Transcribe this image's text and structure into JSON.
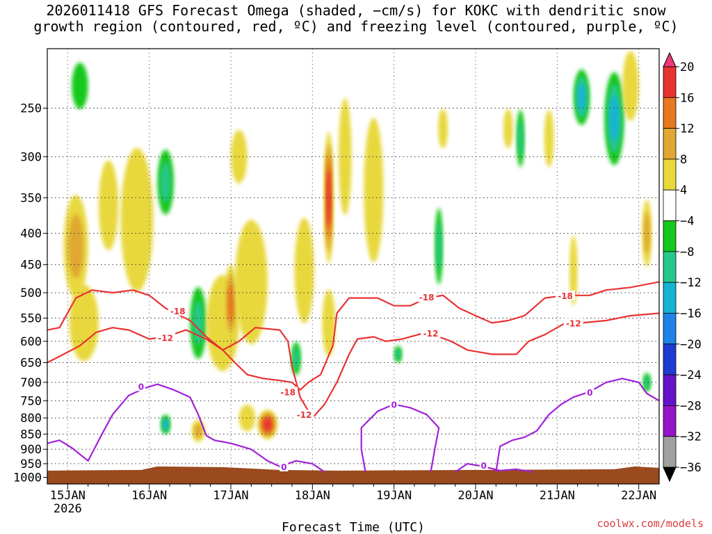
{
  "title": {
    "line1": "2026011418 GFS Forecast Omega (shaded, −cm/s) for KOKC with dendritic snow",
    "line2": "growth region (contoured, red, ºC) and freezing level (contoured, purple, ºC)"
  },
  "credit": "coolwx.com/models",
  "chart_data": {
    "type": "heatmap",
    "title": "2026011418 GFS Forecast Omega (shaded, −cm/s) for KOKC with dendritic snow growth region (contoured, red, ºC) and freezing level (contoured, purple, ºC)",
    "xlabel": "Forecast Time (UTC)",
    "ylabel": "",
    "x_ticks": [
      {
        "day": 15,
        "label": "15JAN",
        "sub": "2026"
      },
      {
        "day": 16,
        "label": "16JAN",
        "sub": ""
      },
      {
        "day": 17,
        "label": "17JAN",
        "sub": ""
      },
      {
        "day": 18,
        "label": "18JAN",
        "sub": ""
      },
      {
        "day": 19,
        "label": "19JAN",
        "sub": ""
      },
      {
        "day": 20,
        "label": "20JAN",
        "sub": ""
      },
      {
        "day": 21,
        "label": "21JAN",
        "sub": ""
      },
      {
        "day": 22,
        "label": "22JAN",
        "sub": ""
      }
    ],
    "x_range_days": [
      14.75,
      22.25
    ],
    "y_ticks": [
      250,
      300,
      350,
      400,
      450,
      500,
      550,
      600,
      650,
      700,
      750,
      800,
      850,
      900,
      950,
      1000
    ],
    "y_range_hpa": [
      200,
      1025
    ],
    "y_scale": "log",
    "grid": true,
    "colorbar": {
      "levels": [
        "20",
        "16",
        "12",
        "8",
        "4",
        "−4",
        "−8",
        "−12",
        "−16",
        "−20",
        "−24",
        "−28",
        "−32",
        "−36"
      ],
      "colors": [
        "#f0387a",
        "#e83232",
        "#e8781e",
        "#e0a832",
        "#e8d83c",
        "#ffffff",
        "#14c81e",
        "#28c88c",
        "#14b4d2",
        "#1e82e6",
        "#1e3cd2",
        "#6414c8",
        "#9614c8",
        "#a0a0a0",
        "#000000"
      ]
    },
    "omega_blobs": [
      {
        "day": 15.1,
        "p": 420,
        "dd": 0.15,
        "dp": 160,
        "v": 9
      },
      {
        "day": 15.2,
        "p": 560,
        "dd": 0.18,
        "dp": 160,
        "v": 6
      },
      {
        "day": 15.5,
        "p": 360,
        "dd": 0.12,
        "dp": 120,
        "v": 5
      },
      {
        "day": 15.15,
        "p": 230,
        "dd": 0.1,
        "dp": 40,
        "v": -6
      },
      {
        "day": 15.85,
        "p": 380,
        "dd": 0.2,
        "dp": 200,
        "v": 5
      },
      {
        "day": 16.2,
        "p": 330,
        "dd": 0.1,
        "dp": 80,
        "v": -9
      },
      {
        "day": 16.6,
        "p": 560,
        "dd": 0.1,
        "dp": 150,
        "v": -10
      },
      {
        "day": 16.2,
        "p": 820,
        "dd": 0.06,
        "dp": 60,
        "v": -13
      },
      {
        "day": 16.9,
        "p": 560,
        "dd": 0.2,
        "dp": 200,
        "v": 7
      },
      {
        "day": 17.0,
        "p": 520,
        "dd": 0.08,
        "dp": 150,
        "v": 14
      },
      {
        "day": 16.6,
        "p": 840,
        "dd": 0.08,
        "dp": 70,
        "v": 8
      },
      {
        "day": 17.25,
        "p": 480,
        "dd": 0.2,
        "dp": 220,
        "v": 6
      },
      {
        "day": 17.1,
        "p": 300,
        "dd": 0.1,
        "dp": 60,
        "v": 5
      },
      {
        "day": 17.45,
        "p": 820,
        "dd": 0.12,
        "dp": 90,
        "v": 17
      },
      {
        "day": 17.2,
        "p": 800,
        "dd": 0.1,
        "dp": 80,
        "v": 6
      },
      {
        "day": 17.8,
        "p": 640,
        "dd": 0.06,
        "dp": 80,
        "v": -8
      },
      {
        "day": 17.9,
        "p": 460,
        "dd": 0.12,
        "dp": 180,
        "v": 5
      },
      {
        "day": 18.2,
        "p": 350,
        "dd": 0.06,
        "dp": 170,
        "v": 18
      },
      {
        "day": 18.2,
        "p": 560,
        "dd": 0.08,
        "dp": 140,
        "v": 6
      },
      {
        "day": 18.4,
        "p": 300,
        "dd": 0.08,
        "dp": 130,
        "v": 5
      },
      {
        "day": 18.75,
        "p": 340,
        "dd": 0.12,
        "dp": 180,
        "v": 5
      },
      {
        "day": 19.55,
        "p": 420,
        "dd": 0.05,
        "dp": 120,
        "v": -9
      },
      {
        "day": 19.05,
        "p": 630,
        "dd": 0.05,
        "dp": 40,
        "v": -9
      },
      {
        "day": 19.6,
        "p": 270,
        "dd": 0.06,
        "dp": 40,
        "v": 5
      },
      {
        "day": 20.4,
        "p": 270,
        "dd": 0.06,
        "dp": 40,
        "v": 5
      },
      {
        "day": 20.9,
        "p": 280,
        "dd": 0.06,
        "dp": 60,
        "v": 5
      },
      {
        "day": 20.55,
        "p": 280,
        "dd": 0.05,
        "dp": 60,
        "v": -8
      },
      {
        "day": 21.3,
        "p": 240,
        "dd": 0.1,
        "dp": 50,
        "v": -12
      },
      {
        "day": 21.7,
        "p": 260,
        "dd": 0.12,
        "dp": 90,
        "v": -13
      },
      {
        "day": 21.2,
        "p": 460,
        "dd": 0.05,
        "dp": 120,
        "v": 5
      },
      {
        "day": 21.9,
        "p": 230,
        "dd": 0.1,
        "dp": 60,
        "v": 5
      },
      {
        "day": 22.1,
        "p": 400,
        "dd": 0.06,
        "dp": 100,
        "v": 9
      },
      {
        "day": 22.1,
        "p": 700,
        "dd": 0.05,
        "dp": 50,
        "v": -8
      }
    ],
    "contours": [
      {
        "name": "-18",
        "color": "#e83232",
        "label": "-18",
        "points": [
          [
            14.75,
            575
          ],
          [
            14.9,
            570
          ],
          [
            15.1,
            510
          ],
          [
            15.3,
            495
          ],
          [
            15.55,
            500
          ],
          [
            15.8,
            495
          ],
          [
            16.0,
            505
          ],
          [
            16.2,
            530
          ],
          [
            16.5,
            555
          ],
          [
            16.7,
            590
          ],
          [
            16.9,
            620
          ],
          [
            17.05,
            650
          ],
          [
            17.2,
            680
          ],
          [
            17.4,
            690
          ],
          [
            17.6,
            695
          ],
          [
            17.75,
            700
          ],
          [
            17.85,
            720
          ],
          [
            17.95,
            700
          ],
          [
            18.1,
            680
          ],
          [
            18.25,
            610
          ],
          [
            18.3,
            540
          ],
          [
            18.45,
            510
          ],
          [
            18.6,
            510
          ],
          [
            18.8,
            510
          ],
          [
            19.0,
            525
          ],
          [
            19.2,
            525
          ],
          [
            19.4,
            510
          ],
          [
            19.6,
            505
          ],
          [
            19.8,
            530
          ],
          [
            20.0,
            545
          ],
          [
            20.2,
            560
          ],
          [
            20.4,
            555
          ],
          [
            20.6,
            545
          ],
          [
            20.85,
            510
          ],
          [
            21.1,
            505
          ],
          [
            21.4,
            505
          ],
          [
            21.6,
            495
          ],
          [
            21.9,
            490
          ],
          [
            22.25,
            480
          ]
        ],
        "labels": [
          [
            16.35,
            535
          ],
          [
            17.7,
            725
          ],
          [
            19.4,
            508
          ],
          [
            21.1,
            505
          ]
        ]
      },
      {
        "name": "-12",
        "color": "#e83232",
        "label": "-12",
        "points": [
          [
            14.75,
            650
          ],
          [
            14.95,
            630
          ],
          [
            15.15,
            610
          ],
          [
            15.35,
            580
          ],
          [
            15.55,
            570
          ],
          [
            15.75,
            575
          ],
          [
            16.0,
            595
          ],
          [
            16.2,
            590
          ],
          [
            16.45,
            575
          ],
          [
            16.7,
            595
          ],
          [
            16.9,
            620
          ],
          [
            17.1,
            600
          ],
          [
            17.3,
            570
          ],
          [
            17.6,
            575
          ],
          [
            17.7,
            600
          ],
          [
            17.75,
            660
          ],
          [
            17.85,
            740
          ],
          [
            18.0,
            800
          ],
          [
            18.15,
            760
          ],
          [
            18.3,
            700
          ],
          [
            18.45,
            630
          ],
          [
            18.55,
            595
          ],
          [
            18.75,
            590
          ],
          [
            18.9,
            600
          ],
          [
            19.1,
            595
          ],
          [
            19.4,
            580
          ],
          [
            19.7,
            600
          ],
          [
            19.9,
            620
          ],
          [
            20.2,
            630
          ],
          [
            20.5,
            630
          ],
          [
            20.65,
            600
          ],
          [
            20.85,
            585
          ],
          [
            21.1,
            560
          ],
          [
            21.3,
            560
          ],
          [
            21.6,
            555
          ],
          [
            21.9,
            545
          ],
          [
            22.25,
            540
          ]
        ],
        "labels": [
          [
            16.2,
            592
          ],
          [
            17.9,
            790
          ],
          [
            19.45,
            582
          ],
          [
            21.2,
            560
          ]
        ]
      },
      {
        "name": "0",
        "color": "#a020d8",
        "label": "0",
        "points": [
          [
            14.75,
            880
          ],
          [
            14.9,
            870
          ],
          [
            15.05,
            895
          ],
          [
            15.25,
            940
          ],
          [
            15.4,
            860
          ],
          [
            15.55,
            790
          ],
          [
            15.75,
            735
          ],
          [
            15.95,
            715
          ],
          [
            16.1,
            705
          ],
          [
            16.3,
            720
          ],
          [
            16.5,
            740
          ],
          [
            16.6,
            790
          ],
          [
            16.7,
            855
          ],
          [
            16.8,
            870
          ],
          [
            17.0,
            880
          ],
          [
            17.25,
            900
          ],
          [
            17.45,
            940
          ],
          [
            17.6,
            960
          ],
          [
            17.8,
            940
          ],
          [
            18.0,
            950
          ],
          [
            18.15,
            980
          ]
        ],
        "labels": [
          [
            15.9,
            710
          ],
          [
            17.65,
            960
          ]
        ]
      },
      {
        "name": "0b",
        "color": "#a020d8",
        "label": "0",
        "points": [
          [
            18.65,
            980
          ],
          [
            18.6,
            900
          ],
          [
            18.6,
            830
          ],
          [
            18.8,
            780
          ],
          [
            19.0,
            760
          ],
          [
            19.2,
            770
          ],
          [
            19.4,
            790
          ],
          [
            19.55,
            830
          ],
          [
            19.5,
            900
          ],
          [
            19.45,
            980
          ]
        ],
        "labels": [
          [
            19.0,
            760
          ]
        ]
      },
      {
        "name": "0c",
        "color": "#a020d8",
        "label": "0",
        "points": [
          [
            19.75,
            980
          ],
          [
            19.9,
            950
          ],
          [
            20.1,
            960
          ],
          [
            20.3,
            975
          ],
          [
            20.5,
            970
          ],
          [
            20.7,
            980
          ]
        ],
        "labels": [
          [
            20.1,
            955
          ]
        ]
      },
      {
        "name": "0d",
        "color": "#a020d8",
        "label": "0",
        "points": [
          [
            20.25,
            980
          ],
          [
            20.3,
            890
          ],
          [
            20.45,
            870
          ],
          [
            20.6,
            860
          ],
          [
            20.75,
            840
          ],
          [
            20.9,
            790
          ],
          [
            21.05,
            760
          ],
          [
            21.2,
            740
          ],
          [
            21.4,
            725
          ],
          [
            21.6,
            700
          ],
          [
            21.8,
            690
          ],
          [
            22.0,
            700
          ],
          [
            22.1,
            730
          ],
          [
            22.25,
            750
          ]
        ],
        "labels": [
          [
            21.4,
            726
          ]
        ]
      }
    ],
    "terrain_color": "#9a4a1e"
  }
}
